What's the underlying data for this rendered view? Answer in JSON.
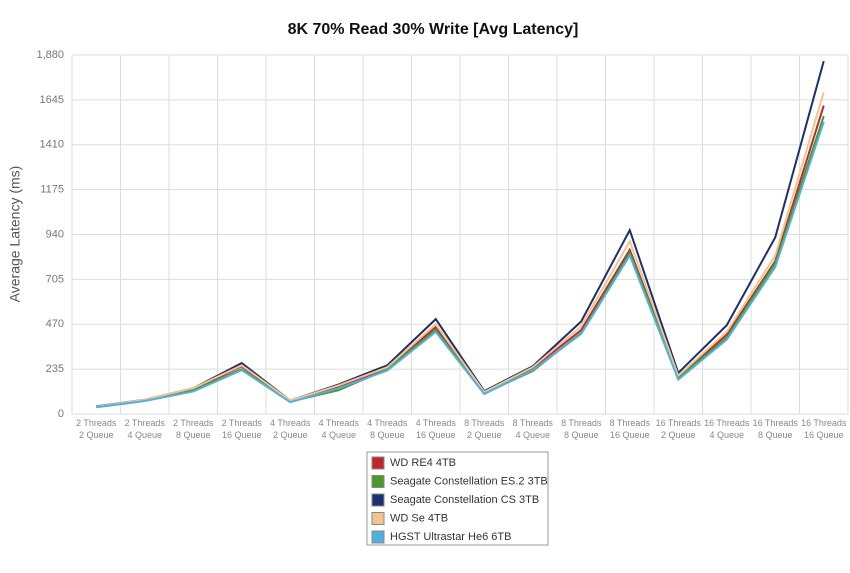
{
  "chart_data": {
    "type": "line",
    "title": "8K 70% Read 30% Write [Avg Latency]",
    "y_label": "Average Latency (ms)",
    "categories": [
      "2 Threads\n2 Queue",
      "2 Threads\n4 Queue",
      "2 Threads\n8 Queue",
      "2 Threads\n16 Queue",
      "4 Threads\n2 Queue",
      "4 Threads\n4 Queue",
      "4 Threads\n8 Queue",
      "4 Threads\n16 Queue",
      "8 Threads\n2 Queue",
      "8 Threads\n4 Queue",
      "8 Threads\n8 Queue",
      "8 Threads\n16 Queue",
      "16 Threads\n2 Queue",
      "16 Threads\n4 Queue",
      "16 Threads\n8 Queue",
      "16 Threads\n16 Queue"
    ],
    "series": [
      {
        "name": "WD RE4 4TB",
        "color": "#c0272d",
        "values": [
          38,
          72,
          130,
          250,
          68,
          140,
          240,
          455,
          112,
          240,
          440,
          860,
          195,
          415,
          800,
          1615
        ]
      },
      {
        "name": "Seagate Constellation ES.2 3TB",
        "color": "#4a9a2a",
        "values": [
          37,
          70,
          125,
          235,
          65,
          125,
          235,
          440,
          108,
          225,
          425,
          845,
          190,
          400,
          790,
          1560
        ]
      },
      {
        "name": "Seagate Constellation CS 3TB",
        "color": "#1c2f6e",
        "values": [
          40,
          75,
          135,
          267,
          70,
          155,
          255,
          497,
          120,
          250,
          485,
          963,
          215,
          465,
          925,
          1848
        ]
      },
      {
        "name": "WD Se 4TB",
        "color": "#f2c48e",
        "values": [
          38,
          75,
          135,
          255,
          70,
          150,
          245,
          470,
          115,
          245,
          460,
          905,
          200,
          430,
          830,
          1685
        ]
      },
      {
        "name": "HGST Ultrastar He6 6TB",
        "color": "#4fb0e0",
        "values": [
          35,
          68,
          118,
          230,
          62,
          135,
          228,
          430,
          105,
          230,
          420,
          830,
          180,
          390,
          770,
          1530
        ]
      }
    ],
    "ylim": [
      0,
      1880
    ],
    "yticks": [
      0,
      235,
      470,
      705,
      940,
      1175,
      1410,
      1645,
      {
        "value": 1880,
        "label": "1,880"
      }
    ],
    "grid": true
  }
}
